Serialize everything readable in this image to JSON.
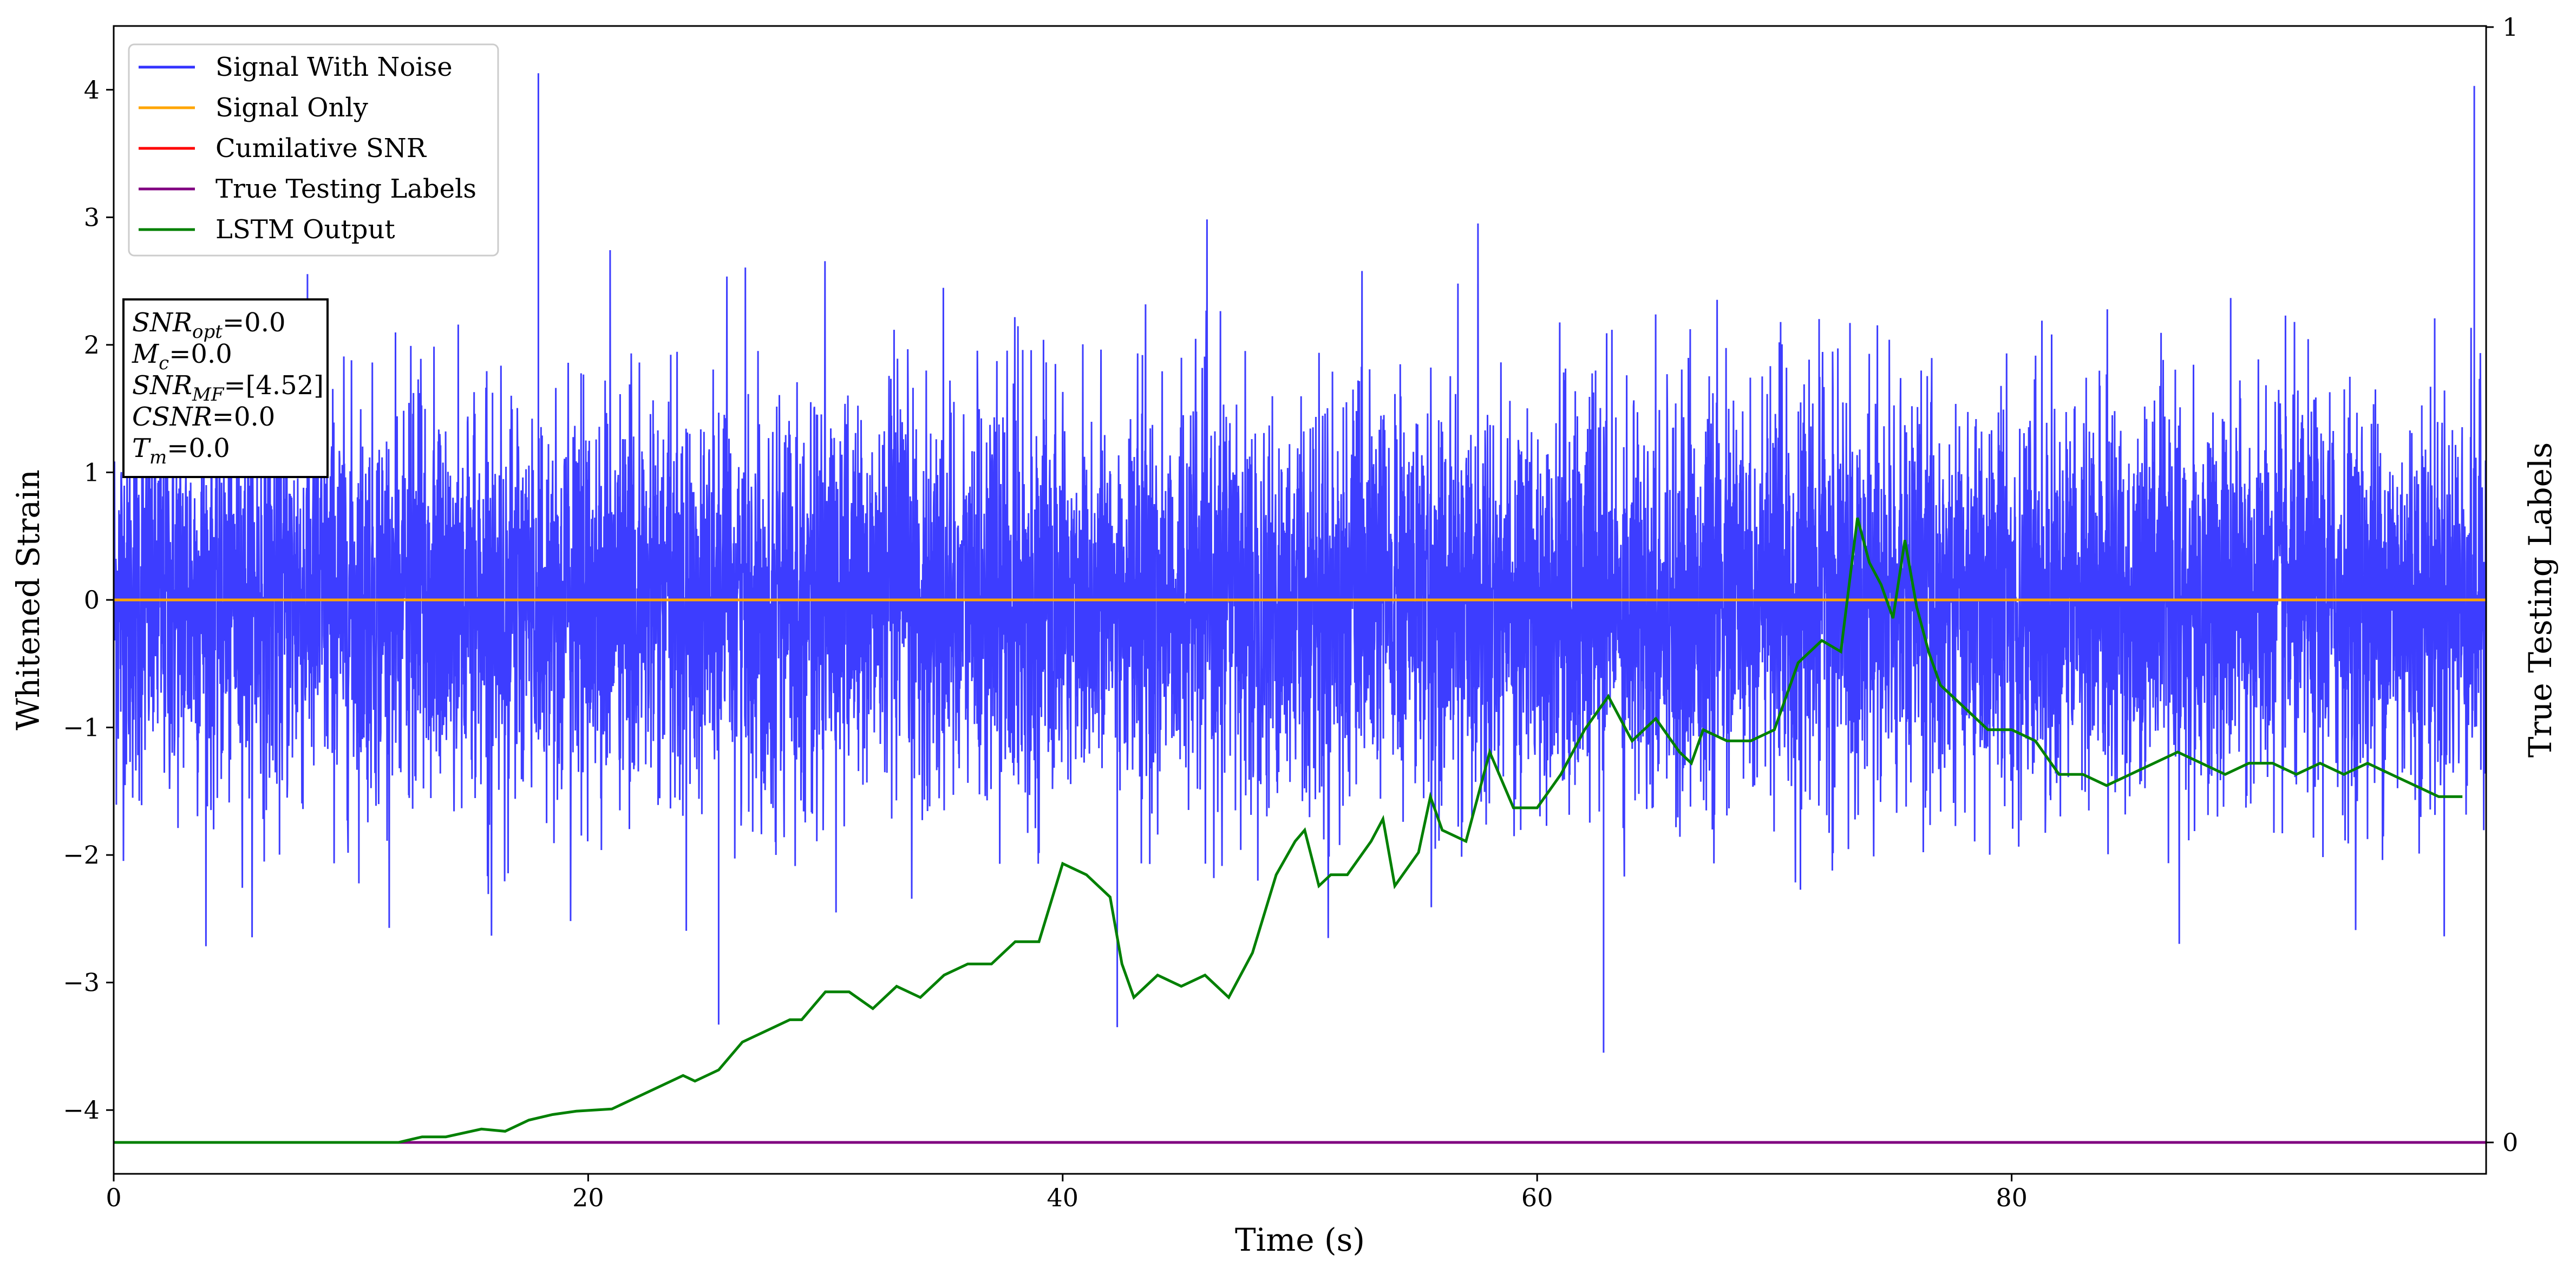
{
  "chart_data": {
    "type": "line",
    "title": "",
    "xlabel": "Time (s)",
    "ylabel": "Whitened Strain",
    "y2label": "True Testing Labels",
    "xlim": [
      0,
      100
    ],
    "ylim": [
      -4.5,
      4.5
    ],
    "y2lim": [
      0,
      1
    ],
    "xticks": [
      0,
      20,
      40,
      60,
      80
    ],
    "yticks": [
      -4,
      -3,
      -2,
      -1,
      0,
      1,
      2,
      3,
      4
    ],
    "y2ticks": [
      0,
      1
    ],
    "grid": false,
    "legend_position": "top-left",
    "series": [
      {
        "name": "Signal With Noise",
        "color": "#3333ff",
        "axis": "left",
        "kind": "noise",
        "extent": {
          "x": [
            0,
            100
          ],
          "typical_min": -2.2,
          "typical_max": 2.4,
          "peak_max": 4.1,
          "peak_min": -3.55
        },
        "annotated_extrema": [
          {
            "x": 17.9,
            "y": 4.13
          },
          {
            "x": 99.5,
            "y": 4.03
          },
          {
            "x": 62.8,
            "y": -3.55
          },
          {
            "x": 25.5,
            "y": -3.33
          },
          {
            "x": 42.3,
            "y": -3.35
          },
          {
            "x": 51.9,
            "y": 0.28
          }
        ]
      },
      {
        "name": "Signal Only",
        "color": "#ffa500",
        "axis": "left",
        "x": [
          0,
          100
        ],
        "y": [
          0,
          0
        ]
      },
      {
        "name": "Cumilative SNR",
        "color": "#ff0000",
        "axis": "left",
        "x": [],
        "y": []
      },
      {
        "name": "True Testing Labels",
        "color": "#800080",
        "axis": "right",
        "x": [
          0,
          100
        ],
        "y": [
          0,
          0
        ]
      },
      {
        "name": "LSTM Output",
        "color": "#008000",
        "axis": "right",
        "x": [
          0,
          10,
          12,
          13,
          14,
          15.5,
          16.5,
          17.5,
          18.5,
          19.5,
          21,
          22,
          23,
          24,
          24.5,
          25.5,
          26.5,
          27.5,
          28.5,
          29,
          30,
          31,
          32,
          33,
          34,
          35,
          36,
          37,
          38,
          39,
          40,
          41,
          42,
          42.5,
          43,
          44,
          45,
          46,
          47,
          48,
          49,
          49.8,
          50.2,
          50.8,
          51.3,
          52,
          53,
          53.5,
          54,
          55,
          55.5,
          56,
          57,
          58,
          59,
          60,
          61,
          62,
          63,
          64,
          65,
          66,
          66.5,
          67,
          68,
          69,
          70,
          71,
          72,
          72.8,
          73.5,
          74,
          74.5,
          75,
          75.5,
          76,
          76.5,
          77,
          78,
          79,
          80,
          81,
          82,
          83,
          84,
          85,
          86,
          87,
          88,
          89,
          90,
          91,
          92,
          93,
          94,
          95,
          96,
          97,
          98,
          99
        ],
        "y": [
          0.0,
          0.0,
          0.0,
          0.005,
          0.005,
          0.012,
          0.01,
          0.02,
          0.025,
          0.028,
          0.03,
          0.04,
          0.05,
          0.06,
          0.055,
          0.065,
          0.09,
          0.1,
          0.11,
          0.11,
          0.135,
          0.135,
          0.12,
          0.14,
          0.13,
          0.15,
          0.16,
          0.16,
          0.18,
          0.18,
          0.25,
          0.24,
          0.22,
          0.16,
          0.13,
          0.15,
          0.14,
          0.15,
          0.13,
          0.17,
          0.24,
          0.27,
          0.28,
          0.23,
          0.24,
          0.24,
          0.27,
          0.29,
          0.23,
          0.26,
          0.31,
          0.28,
          0.27,
          0.35,
          0.3,
          0.3,
          0.33,
          0.37,
          0.4,
          0.36,
          0.38,
          0.35,
          0.34,
          0.37,
          0.36,
          0.36,
          0.37,
          0.43,
          0.45,
          0.44,
          0.56,
          0.52,
          0.5,
          0.47,
          0.54,
          0.48,
          0.44,
          0.41,
          0.39,
          0.37,
          0.37,
          0.36,
          0.33,
          0.33,
          0.32,
          0.33,
          0.34,
          0.35,
          0.34,
          0.33,
          0.34,
          0.34,
          0.33,
          0.34,
          0.33,
          0.34,
          0.33,
          0.32,
          0.31,
          0.31
        ]
      }
    ],
    "info_box": [
      {
        "label": "SNR",
        "sub": "opt",
        "value": "=0.0"
      },
      {
        "label": "M",
        "sub": "c",
        "value": "=0.0"
      },
      {
        "label": "SNR",
        "sub": "MF",
        "value": "=[4.52]"
      },
      {
        "label": "CSNR",
        "sub": "",
        "value": "=0.0"
      },
      {
        "label": "T",
        "sub": "m",
        "value": "=0.0"
      }
    ]
  }
}
